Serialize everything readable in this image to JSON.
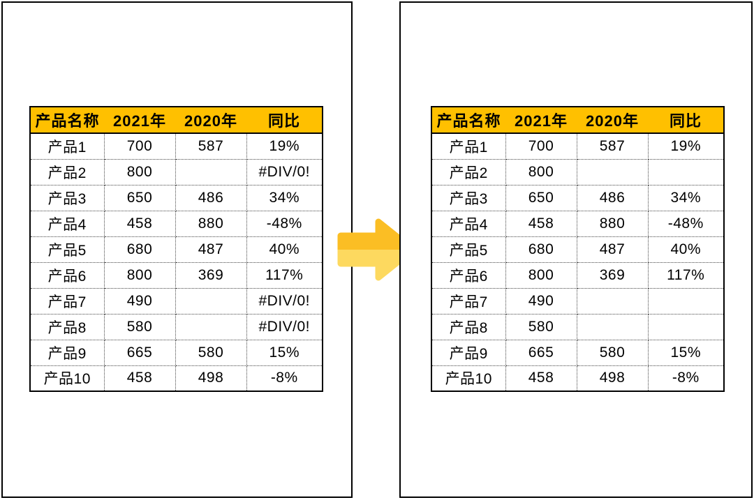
{
  "headers": [
    "产品名称",
    "2021年",
    "2020年",
    "同比"
  ],
  "left_table": {
    "name": "source-table-with-errors",
    "rows": [
      [
        "产品1",
        "700",
        "587",
        "19%"
      ],
      [
        "产品2",
        "800",
        "",
        "#DIV/0!"
      ],
      [
        "产品3",
        "650",
        "486",
        "34%"
      ],
      [
        "产品4",
        "458",
        "880",
        "-48%"
      ],
      [
        "产品5",
        "680",
        "487",
        "40%"
      ],
      [
        "产品6",
        "800",
        "369",
        "117%"
      ],
      [
        "产品7",
        "490",
        "",
        "#DIV/0!"
      ],
      [
        "产品8",
        "580",
        "",
        "#DIV/0!"
      ],
      [
        "产品9",
        "665",
        "580",
        "15%"
      ],
      [
        "产品10",
        "458",
        "498",
        "-8%"
      ]
    ]
  },
  "right_table": {
    "name": "result-table-errors-hidden",
    "rows": [
      [
        "产品1",
        "700",
        "587",
        "19%"
      ],
      [
        "产品2",
        "800",
        "",
        ""
      ],
      [
        "产品3",
        "650",
        "486",
        "34%"
      ],
      [
        "产品4",
        "458",
        "880",
        "-48%"
      ],
      [
        "产品5",
        "680",
        "487",
        "40%"
      ],
      [
        "产品6",
        "800",
        "369",
        "117%"
      ],
      [
        "产品7",
        "490",
        "",
        ""
      ],
      [
        "产品8",
        "580",
        "",
        ""
      ],
      [
        "产品9",
        "665",
        "580",
        "15%"
      ],
      [
        "产品10",
        "458",
        "498",
        "-8%"
      ]
    ]
  },
  "arrow": {
    "icon": "right-arrow-icon",
    "top_color": "#FBBE24",
    "bottom_color": "#FDD95F"
  },
  "colors": {
    "header_bg": "#FFC000",
    "header_text": "#000000",
    "cell_text": "#000000",
    "panel_border": "#000000",
    "grid_dotted": "#444444",
    "background": "#FFFFFF"
  }
}
